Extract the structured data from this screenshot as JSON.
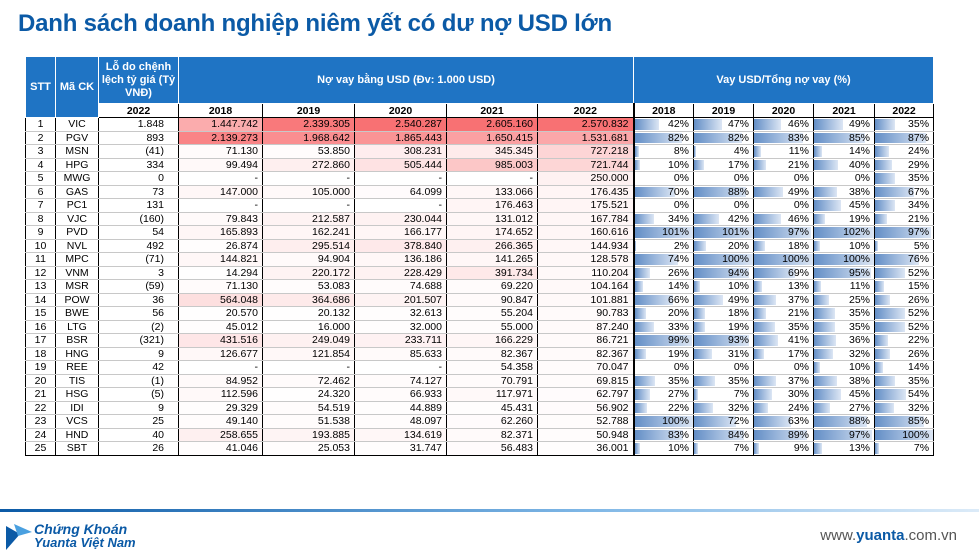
{
  "title": "Danh sách doanh nghiệp niêm yết có dư nợ USD lớn",
  "headers": {
    "stt": "STT",
    "ticker": "Mã CK",
    "fx_loss": "Lỗ do chệnh lệch tỷ giá (Tỷ VNĐ)",
    "fx_year": "2022",
    "usd_debt": "Nợ vay bằng USD (Đv: 1.000 USD)",
    "usd_ratio": "Vay USD/Tổng nợ vay (%)",
    "years": [
      "2018",
      "2019",
      "2020",
      "2021",
      "2022"
    ]
  },
  "colors": {
    "header_bg": "#1f74c4",
    "title": "#0b5aa6",
    "heat_high": "#f8696b",
    "bar": "#638ec6"
  },
  "rows": [
    {
      "stt": "1",
      "ck": "VIC",
      "fx": "1.848",
      "debt": [
        "1.447.742",
        "2.339.305",
        "2.540.287",
        "2.605.160",
        "2.570.832"
      ],
      "pct": [
        "42%",
        "47%",
        "46%",
        "49%",
        "35%"
      ]
    },
    {
      "stt": "2",
      "ck": "PGV",
      "fx": "893",
      "debt": [
        "2.139.273",
        "1.968.642",
        "1.865.443",
        "1.650.415",
        "1.531.681"
      ],
      "pct": [
        "82%",
        "82%",
        "83%",
        "85%",
        "87%"
      ]
    },
    {
      "stt": "3",
      "ck": "MSN",
      "fx": "(41)",
      "debt": [
        "71.130",
        "53.850",
        "308.231",
        "345.345",
        "727.218"
      ],
      "pct": [
        "8%",
        "4%",
        "11%",
        "14%",
        "24%"
      ]
    },
    {
      "stt": "4",
      "ck": "HPG",
      "fx": "334",
      "debt": [
        "99.494",
        "272.860",
        "505.444",
        "985.003",
        "721.744"
      ],
      "pct": [
        "10%",
        "17%",
        "21%",
        "40%",
        "29%"
      ]
    },
    {
      "stt": "5",
      "ck": "MWG",
      "fx": "0",
      "debt": [
        "-",
        "-",
        "-",
        "-",
        "250.000"
      ],
      "pct": [
        "0%",
        "0%",
        "0%",
        "0%",
        "35%"
      ]
    },
    {
      "stt": "6",
      "ck": "GAS",
      "fx": "73",
      "debt": [
        "147.000",
        "105.000",
        "64.099",
        "133.066",
        "176.435"
      ],
      "pct": [
        "70%",
        "88%",
        "49%",
        "38%",
        "67%"
      ]
    },
    {
      "stt": "7",
      "ck": "PC1",
      "fx": "131",
      "debt": [
        "-",
        "-",
        "-",
        "176.463",
        "175.521"
      ],
      "pct": [
        "0%",
        "0%",
        "0%",
        "45%",
        "34%"
      ]
    },
    {
      "stt": "8",
      "ck": "VJC",
      "fx": "(160)",
      "debt": [
        "79.843",
        "212.587",
        "230.044",
        "131.012",
        "167.784"
      ],
      "pct": [
        "34%",
        "42%",
        "46%",
        "19%",
        "21%"
      ]
    },
    {
      "stt": "9",
      "ck": "PVD",
      "fx": "54",
      "debt": [
        "165.893",
        "162.241",
        "166.177",
        "174.652",
        "160.616"
      ],
      "pct": [
        "101%",
        "101%",
        "97%",
        "102%",
        "97%"
      ]
    },
    {
      "stt": "10",
      "ck": "NVL",
      "fx": "492",
      "debt": [
        "26.874",
        "295.514",
        "378.840",
        "266.365",
        "144.934"
      ],
      "pct": [
        "2%",
        "20%",
        "18%",
        "10%",
        "5%"
      ]
    },
    {
      "stt": "11",
      "ck": "MPC",
      "fx": "(71)",
      "debt": [
        "144.821",
        "94.904",
        "136.186",
        "141.265",
        "128.578"
      ],
      "pct": [
        "74%",
        "100%",
        "100%",
        "100%",
        "76%"
      ]
    },
    {
      "stt": "12",
      "ck": "VNM",
      "fx": "3",
      "debt": [
        "14.294",
        "220.172",
        "228.429",
        "391.734",
        "110.204"
      ],
      "pct": [
        "26%",
        "94%",
        "69%",
        "95%",
        "52%"
      ]
    },
    {
      "stt": "13",
      "ck": "MSR",
      "fx": "(59)",
      "debt": [
        "71.130",
        "53.083",
        "74.688",
        "69.220",
        "104.164"
      ],
      "pct": [
        "14%",
        "10%",
        "13%",
        "11%",
        "15%"
      ]
    },
    {
      "stt": "14",
      "ck": "POW",
      "fx": "36",
      "debt": [
        "564.048",
        "364.686",
        "201.507",
        "90.847",
        "101.881"
      ],
      "pct": [
        "66%",
        "49%",
        "37%",
        "25%",
        "26%"
      ]
    },
    {
      "stt": "15",
      "ck": "BWE",
      "fx": "56",
      "debt": [
        "20.570",
        "20.132",
        "32.613",
        "55.204",
        "90.783"
      ],
      "pct": [
        "20%",
        "18%",
        "21%",
        "35%",
        "52%"
      ]
    },
    {
      "stt": "16",
      "ck": "LTG",
      "fx": "(2)",
      "debt": [
        "45.012",
        "16.000",
        "32.000",
        "55.000",
        "87.240"
      ],
      "pct": [
        "33%",
        "19%",
        "35%",
        "35%",
        "52%"
      ]
    },
    {
      "stt": "17",
      "ck": "BSR",
      "fx": "(321)",
      "debt": [
        "431.516",
        "249.049",
        "233.711",
        "166.229",
        "86.721"
      ],
      "pct": [
        "99%",
        "93%",
        "41%",
        "36%",
        "22%"
      ]
    },
    {
      "stt": "18",
      "ck": "HNG",
      "fx": "9",
      "debt": [
        "126.677",
        "121.854",
        "85.633",
        "82.367",
        "82.367"
      ],
      "pct": [
        "19%",
        "31%",
        "17%",
        "32%",
        "26%"
      ]
    },
    {
      "stt": "19",
      "ck": "REE",
      "fx": "42",
      "debt": [
        "-",
        "-",
        "-",
        "54.358",
        "70.047"
      ],
      "pct": [
        "0%",
        "0%",
        "0%",
        "10%",
        "14%"
      ]
    },
    {
      "stt": "20",
      "ck": "TIS",
      "fx": "(1)",
      "debt": [
        "84.952",
        "72.462",
        "74.127",
        "70.791",
        "69.815"
      ],
      "pct": [
        "35%",
        "35%",
        "37%",
        "38%",
        "35%"
      ]
    },
    {
      "stt": "21",
      "ck": "HSG",
      "fx": "(5)",
      "debt": [
        "112.596",
        "24.320",
        "66.933",
        "117.971",
        "62.797"
      ],
      "pct": [
        "27%",
        "7%",
        "30%",
        "45%",
        "54%"
      ]
    },
    {
      "stt": "22",
      "ck": "IDI",
      "fx": "9",
      "debt": [
        "29.329",
        "54.519",
        "44.889",
        "45.431",
        "56.902"
      ],
      "pct": [
        "22%",
        "32%",
        "24%",
        "27%",
        "32%"
      ]
    },
    {
      "stt": "23",
      "ck": "VCS",
      "fx": "25",
      "debt": [
        "49.140",
        "51.538",
        "48.097",
        "62.260",
        "52.788"
      ],
      "pct": [
        "100%",
        "72%",
        "63%",
        "88%",
        "85%"
      ]
    },
    {
      "stt": "24",
      "ck": "HND",
      "fx": "40",
      "debt": [
        "258.655",
        "193.885",
        "134.619",
        "82.371",
        "50.948"
      ],
      "pct": [
        "83%",
        "84%",
        "89%",
        "97%",
        "100%"
      ]
    },
    {
      "stt": "25",
      "ck": "SBT",
      "fx": "26",
      "debt": [
        "41.046",
        "25.053",
        "31.747",
        "56.483",
        "36.001"
      ],
      "pct": [
        "10%",
        "7%",
        "9%",
        "13%",
        "7%"
      ]
    }
  ],
  "footer": {
    "brand_line1": "Chứng Khoán",
    "brand_line2": "Yuanta Việt Nam",
    "url_prefix": "www.",
    "url_brand": "yuanta",
    "url_suffix": ".com.vn"
  }
}
